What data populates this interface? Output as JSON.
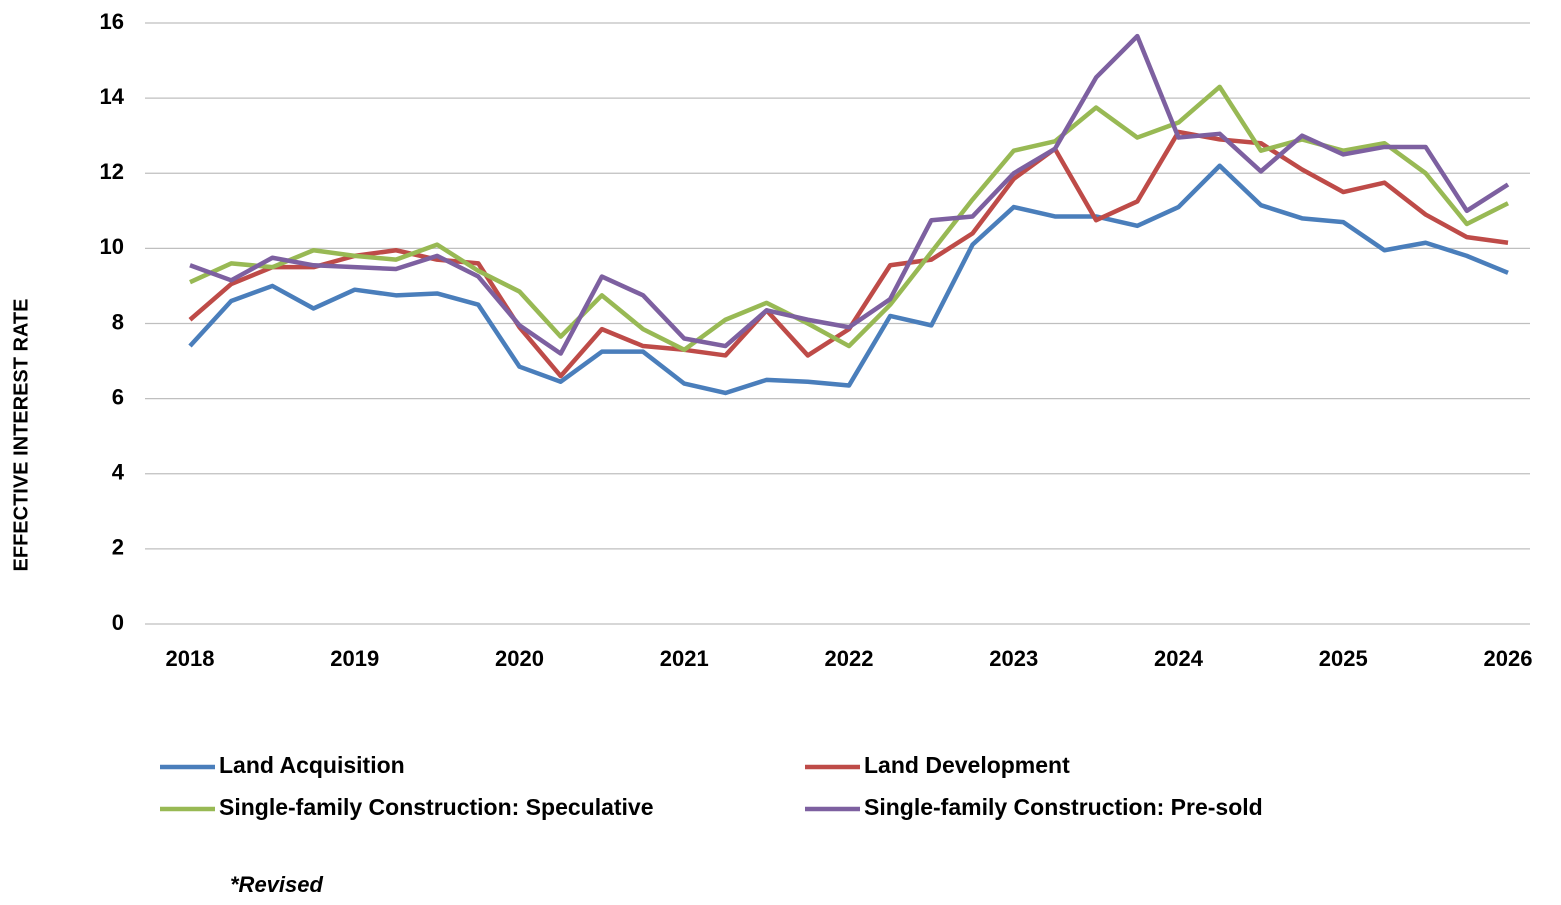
{
  "chart_data": {
    "type": "line",
    "y_label": "EFFECTIVE INTEREST RATE",
    "note": "*Revised",
    "categories": [
      "2018",
      null,
      null,
      null,
      "2019",
      null,
      null,
      null,
      "2020",
      null,
      null,
      null,
      "2021",
      null,
      null,
      null,
      "2022",
      null,
      null,
      null,
      "2023",
      null,
      null,
      null,
      "2024",
      null,
      null,
      null,
      "2025",
      null,
      null,
      null,
      "2026"
    ],
    "ylim": [
      0,
      16
    ],
    "yticks": [
      0,
      2,
      4,
      6,
      8,
      10,
      12,
      14,
      16
    ],
    "grid": true,
    "series": [
      {
        "name": "Land Acquisition",
        "color": "#4a7ebb",
        "values": [
          7.4,
          8.6,
          9.0,
          8.4,
          8.9,
          8.75,
          8.8,
          8.5,
          6.85,
          6.45,
          7.25,
          7.25,
          6.4,
          6.15,
          6.5,
          6.45,
          6.35,
          8.2,
          7.95,
          10.1,
          11.1,
          10.85,
          10.85,
          10.6,
          11.1,
          12.2,
          11.15,
          10.8,
          10.7,
          9.95,
          10.15,
          9.8,
          9.35
        ]
      },
      {
        "name": "Land Development",
        "color": "#be4b48",
        "values": [
          8.1,
          9.05,
          9.5,
          9.5,
          9.8,
          9.95,
          9.7,
          9.6,
          7.9,
          6.6,
          7.85,
          7.4,
          7.3,
          7.15,
          8.35,
          7.15,
          7.85,
          9.55,
          9.7,
          10.4,
          11.85,
          12.65,
          10.75,
          11.25,
          13.1,
          12.9,
          12.8,
          12.1,
          11.5,
          11.75,
          10.9,
          10.3,
          10.15
        ]
      },
      {
        "name": "Single-family Construction: Speculative",
        "color": "#98b954",
        "values": [
          9.1,
          9.6,
          9.5,
          9.95,
          9.8,
          9.7,
          10.1,
          9.4,
          8.85,
          7.65,
          8.75,
          7.85,
          7.3,
          8.1,
          8.55,
          8.0,
          7.4,
          8.5,
          9.9,
          11.3,
          12.6,
          12.85,
          13.75,
          12.95,
          13.35,
          14.3,
          12.6,
          12.9,
          12.6,
          12.8,
          12.0,
          10.65,
          11.2
        ]
      },
      {
        "name": "Single-family Construction: Pre-sold",
        "color": "#7d60a0",
        "values": [
          9.55,
          9.15,
          9.75,
          9.55,
          9.5,
          9.45,
          9.8,
          9.25,
          7.95,
          7.2,
          9.25,
          8.75,
          7.6,
          7.4,
          8.35,
          8.1,
          7.9,
          8.65,
          10.75,
          10.85,
          12.0,
          12.65,
          14.55,
          15.65,
          12.95,
          13.05,
          12.05,
          13.0,
          12.5,
          12.7,
          12.7,
          11.0,
          11.7
        ]
      }
    ]
  }
}
